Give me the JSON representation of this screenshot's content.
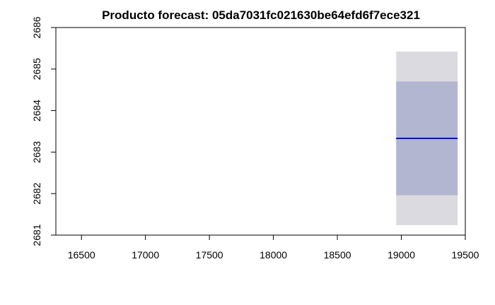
{
  "chart_data": {
    "type": "area",
    "title": "Producto forecast:  05da7031fc021630be64efd6f7ece321",
    "xlabel": "",
    "ylabel": "",
    "xlim": [
      16300,
      19500
    ],
    "ylim": [
      2681,
      2686
    ],
    "x_ticks": [
      "16500",
      "17000",
      "17500",
      "18000",
      "18500",
      "19000",
      "19500"
    ],
    "y_ticks": [
      "2681",
      "2682",
      "2683",
      "2684",
      "2685",
      "2686"
    ],
    "grid": false,
    "legend": "none",
    "forecast": {
      "x_start": 18960,
      "x_end": 19440,
      "mean": 2683.33,
      "interval_80": [
        2681.96,
        2684.7
      ],
      "interval_95": [
        2681.24,
        2685.42
      ]
    },
    "colors": {
      "interval_95": "#dbdae0",
      "interval_80": "#b2b6d0",
      "mean_line": "#0000ee",
      "axis": "#000000"
    }
  }
}
